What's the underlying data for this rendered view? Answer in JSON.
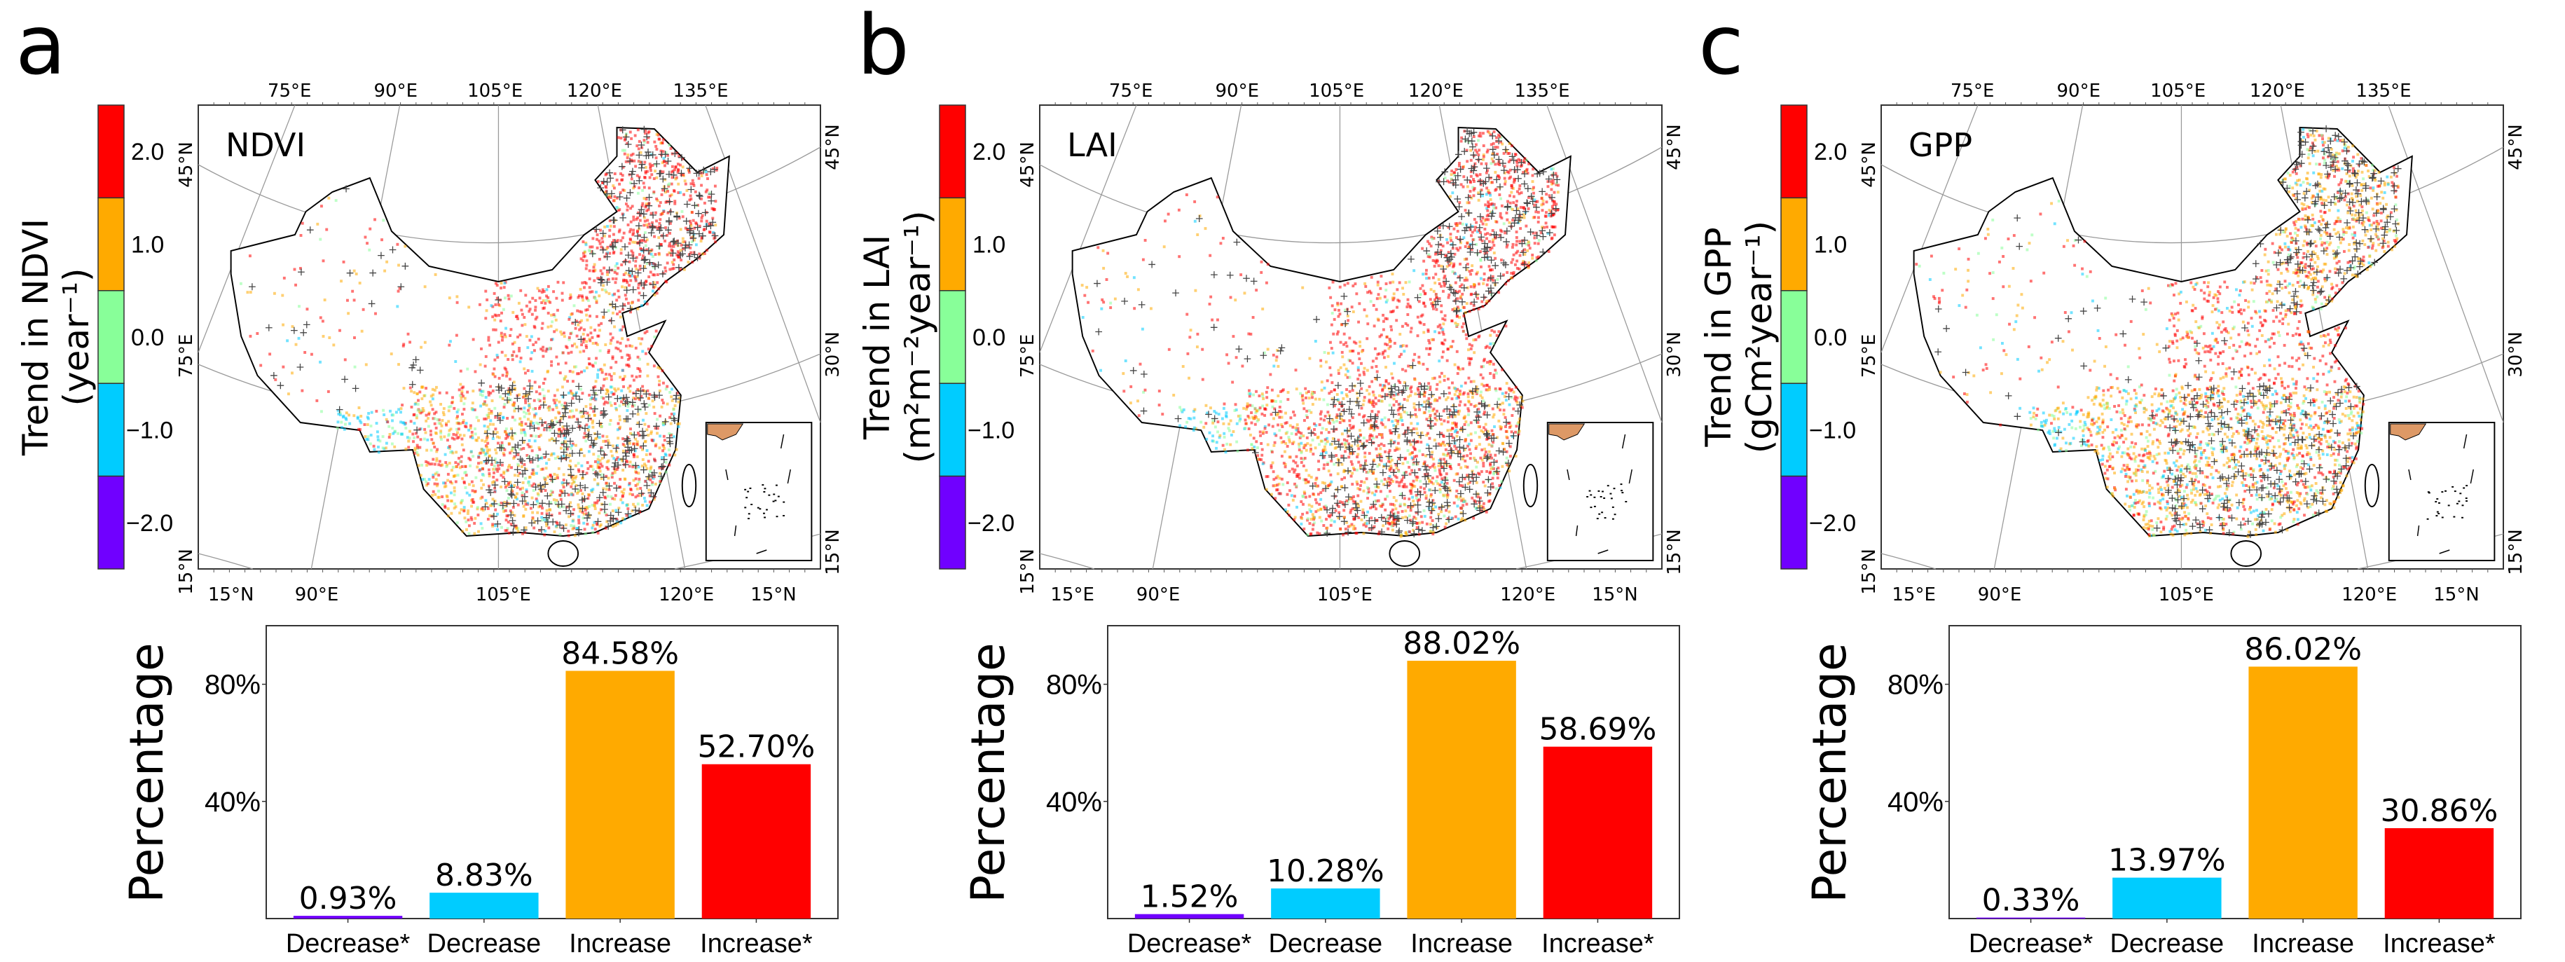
{
  "colorbar_colors": [
    "#ff0000",
    "#ffaa00",
    "#88ff99",
    "#00ccff",
    "#7000ff"
  ],
  "panels": [
    {
      "letter": "a",
      "map_label": "NDVI",
      "colorbar": {
        "title": "Trend in NDVI",
        "unit": "(year⁻¹)",
        "ticks": [
          "2.0",
          "1.0",
          "0.0",
          "−1.0",
          "−2.0"
        ]
      },
      "map_ticks": {
        "top": [
          "75°E",
          "90°E",
          "105°E",
          "120°E",
          "135°E"
        ],
        "bottom": [
          "15°N",
          "90°E",
          "105°E",
          "120°E",
          "15°N"
        ],
        "left": [
          "45°N",
          "75°E",
          "15°N"
        ],
        "right": [
          "45°N",
          "30°N",
          "15°N"
        ]
      }
    },
    {
      "letter": "b",
      "map_label": "LAI",
      "colorbar": {
        "title": "Trend in LAI",
        "unit": "(m²m⁻²year⁻¹)",
        "ticks": [
          "2.0",
          "1.0",
          "0.0",
          "−1.0",
          "−2.0"
        ]
      },
      "map_ticks": {
        "top": [
          "75°E",
          "90°E",
          "105°E",
          "120°E",
          "135°E"
        ],
        "bottom": [
          "15°E",
          "90°E",
          "105°E",
          "120°E",
          "15°N"
        ],
        "left": [
          "45°N",
          "75°E",
          "15°N"
        ],
        "right": [
          "45°N",
          "30°N",
          "15°N"
        ]
      }
    },
    {
      "letter": "c",
      "map_label": "GPP",
      "colorbar": {
        "title": "Trend in GPP",
        "unit": "(gCm²year⁻¹)",
        "ticks": [
          "2.0",
          "1.0",
          "0.0",
          "−1.0",
          "−2.0"
        ]
      },
      "map_ticks": {
        "top": [
          "75°E",
          "90°E",
          "105°E",
          "120°E",
          "135°E"
        ],
        "bottom": [
          "15°E",
          "90°E",
          "105°E",
          "120°E",
          "15°N"
        ],
        "left": [
          "45°N",
          "75°E",
          "15°N"
        ],
        "right": [
          "45°N",
          "30°N",
          "15°N"
        ]
      }
    }
  ],
  "chart_data": [
    {
      "type": "bar",
      "categories": [
        "Decrease*",
        "Decrease",
        "Increase",
        "Increase*"
      ],
      "values": [
        0.93,
        8.83,
        84.58,
        52.7
      ],
      "value_labels": [
        "0.93%",
        "8.83%",
        "84.58%",
        "52.70%"
      ],
      "colors": [
        "#7000ff",
        "#00ccff",
        "#ffaa00",
        "#ff0000"
      ],
      "ylabel": "Percentage",
      "yticks": [
        40,
        80
      ],
      "ytick_labels": [
        "40%",
        "80%"
      ],
      "ylim": [
        0,
        100
      ],
      "grid": false
    },
    {
      "type": "bar",
      "categories": [
        "Decrease*",
        "Decrease",
        "Increase",
        "Increase*"
      ],
      "values": [
        1.52,
        10.28,
        88.02,
        58.69
      ],
      "value_labels": [
        "1.52%",
        "10.28%",
        "88.02%",
        "58.69%"
      ],
      "colors": [
        "#7000ff",
        "#00ccff",
        "#ffaa00",
        "#ff0000"
      ],
      "ylabel": "Percentage",
      "yticks": [
        40,
        80
      ],
      "ytick_labels": [
        "40%",
        "80%"
      ],
      "ylim": [
        0,
        100
      ],
      "grid": false
    },
    {
      "type": "bar",
      "categories": [
        "Decrease*",
        "Decrease",
        "Increase",
        "Increase*"
      ],
      "values": [
        0.33,
        13.97,
        86.02,
        30.86
      ],
      "value_labels": [
        "0.33%",
        "13.97%",
        "86.02%",
        "30.86%"
      ],
      "colors": [
        "#7000ff",
        "#00ccff",
        "#ffaa00",
        "#ff0000"
      ],
      "ylabel": "Percentage",
      "yticks": [
        40,
        80
      ],
      "ytick_labels": [
        "40%",
        "80%"
      ],
      "ylim": [
        0,
        100
      ],
      "grid": false
    }
  ]
}
